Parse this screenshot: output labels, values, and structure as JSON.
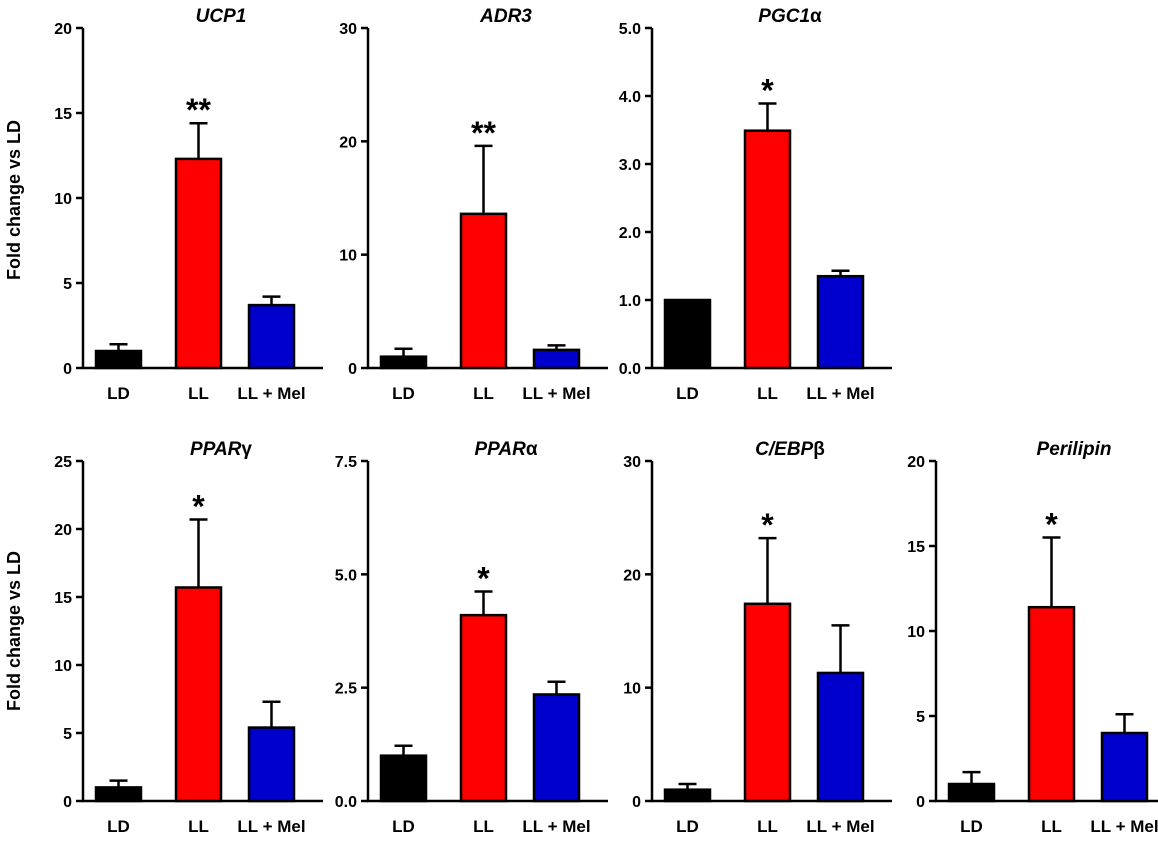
{
  "figure": {
    "ylabel": "Fold change vs LD"
  },
  "chart_data": [
    {
      "type": "bar",
      "title": "UCP1",
      "title_suffix": "",
      "categories": [
        "LD",
        "LL",
        "LL + Mel"
      ],
      "values": [
        1.0,
        12.3,
        3.7
      ],
      "errors": [
        0.4,
        2.1,
        0.5
      ],
      "colors": [
        "#000000",
        "#ff0000",
        "#0000cc"
      ],
      "ylim": [
        0,
        20
      ],
      "ticks": [
        "0",
        "5",
        "10",
        "15",
        "20"
      ],
      "significance": [
        "",
        "**",
        ""
      ]
    },
    {
      "type": "bar",
      "title": "ADR3",
      "title_suffix": "",
      "categories": [
        "LD",
        "LL",
        "LL + Mel"
      ],
      "values": [
        1.0,
        13.6,
        1.6
      ],
      "errors": [
        0.7,
        6.0,
        0.4
      ],
      "colors": [
        "#000000",
        "#ff0000",
        "#0000cc"
      ],
      "ylim": [
        0,
        30
      ],
      "ticks": [
        "0",
        "10",
        "20",
        "30"
      ],
      "significance": [
        "",
        "**",
        ""
      ]
    },
    {
      "type": "bar",
      "title": "PGC1",
      "title_suffix": "α",
      "categories": [
        "LD",
        "LL",
        "LL + Mel"
      ],
      "values": [
        1.0,
        3.49,
        1.35
      ],
      "errors": [
        0.0,
        0.4,
        0.08
      ],
      "colors": [
        "#000000",
        "#ff0000",
        "#0000cc"
      ],
      "ylim": [
        0,
        5
      ],
      "ticks": [
        "0.0",
        "1.0",
        "2.0",
        "3.0",
        "4.0",
        "5.0"
      ],
      "significance": [
        "",
        "*",
        ""
      ]
    },
    {
      "type": "bar",
      "title": "PPAR",
      "title_suffix": "γ",
      "categories": [
        "LD",
        "LL",
        "LL + Mel"
      ],
      "values": [
        1.0,
        15.7,
        5.4
      ],
      "errors": [
        0.5,
        5.0,
        1.9
      ],
      "colors": [
        "#000000",
        "#ff0000",
        "#0000cc"
      ],
      "ylim": [
        0,
        25
      ],
      "ticks": [
        "0",
        "5",
        "10",
        "15",
        "20",
        "25"
      ],
      "significance": [
        "",
        "*",
        ""
      ]
    },
    {
      "type": "bar",
      "title": "PPAR",
      "title_suffix": "α",
      "categories": [
        "LD",
        "LL",
        "LL + Mel"
      ],
      "values": [
        1.0,
        4.1,
        2.35
      ],
      "errors": [
        0.22,
        0.52,
        0.28
      ],
      "colors": [
        "#000000",
        "#ff0000",
        "#0000cc"
      ],
      "ylim": [
        0,
        7.5
      ],
      "ticks": [
        "0.0",
        "2.5",
        "5.0",
        "7.5"
      ],
      "significance": [
        "",
        "*",
        ""
      ]
    },
    {
      "type": "bar",
      "title": "C/EBP",
      "title_suffix": "β",
      "categories": [
        "LD",
        "LL",
        "LL + Mel"
      ],
      "values": [
        1.0,
        17.4,
        11.3
      ],
      "errors": [
        0.5,
        5.8,
        4.2
      ],
      "colors": [
        "#000000",
        "#ff0000",
        "#0000cc"
      ],
      "ylim": [
        0,
        30
      ],
      "ticks": [
        "0",
        "10",
        "20",
        "30"
      ],
      "significance": [
        "",
        "*",
        ""
      ]
    },
    {
      "type": "bar",
      "title": "Perilipin",
      "title_suffix": "",
      "categories": [
        "LD",
        "LL",
        "LL + Mel"
      ],
      "values": [
        1.0,
        11.4,
        4.0
      ],
      "errors": [
        0.7,
        4.1,
        1.1
      ],
      "colors": [
        "#000000",
        "#ff0000",
        "#0000cc"
      ],
      "ylim": [
        0,
        20
      ],
      "ticks": [
        "0",
        "5",
        "10",
        "15",
        "20"
      ],
      "significance": [
        "",
        "*",
        ""
      ]
    }
  ]
}
